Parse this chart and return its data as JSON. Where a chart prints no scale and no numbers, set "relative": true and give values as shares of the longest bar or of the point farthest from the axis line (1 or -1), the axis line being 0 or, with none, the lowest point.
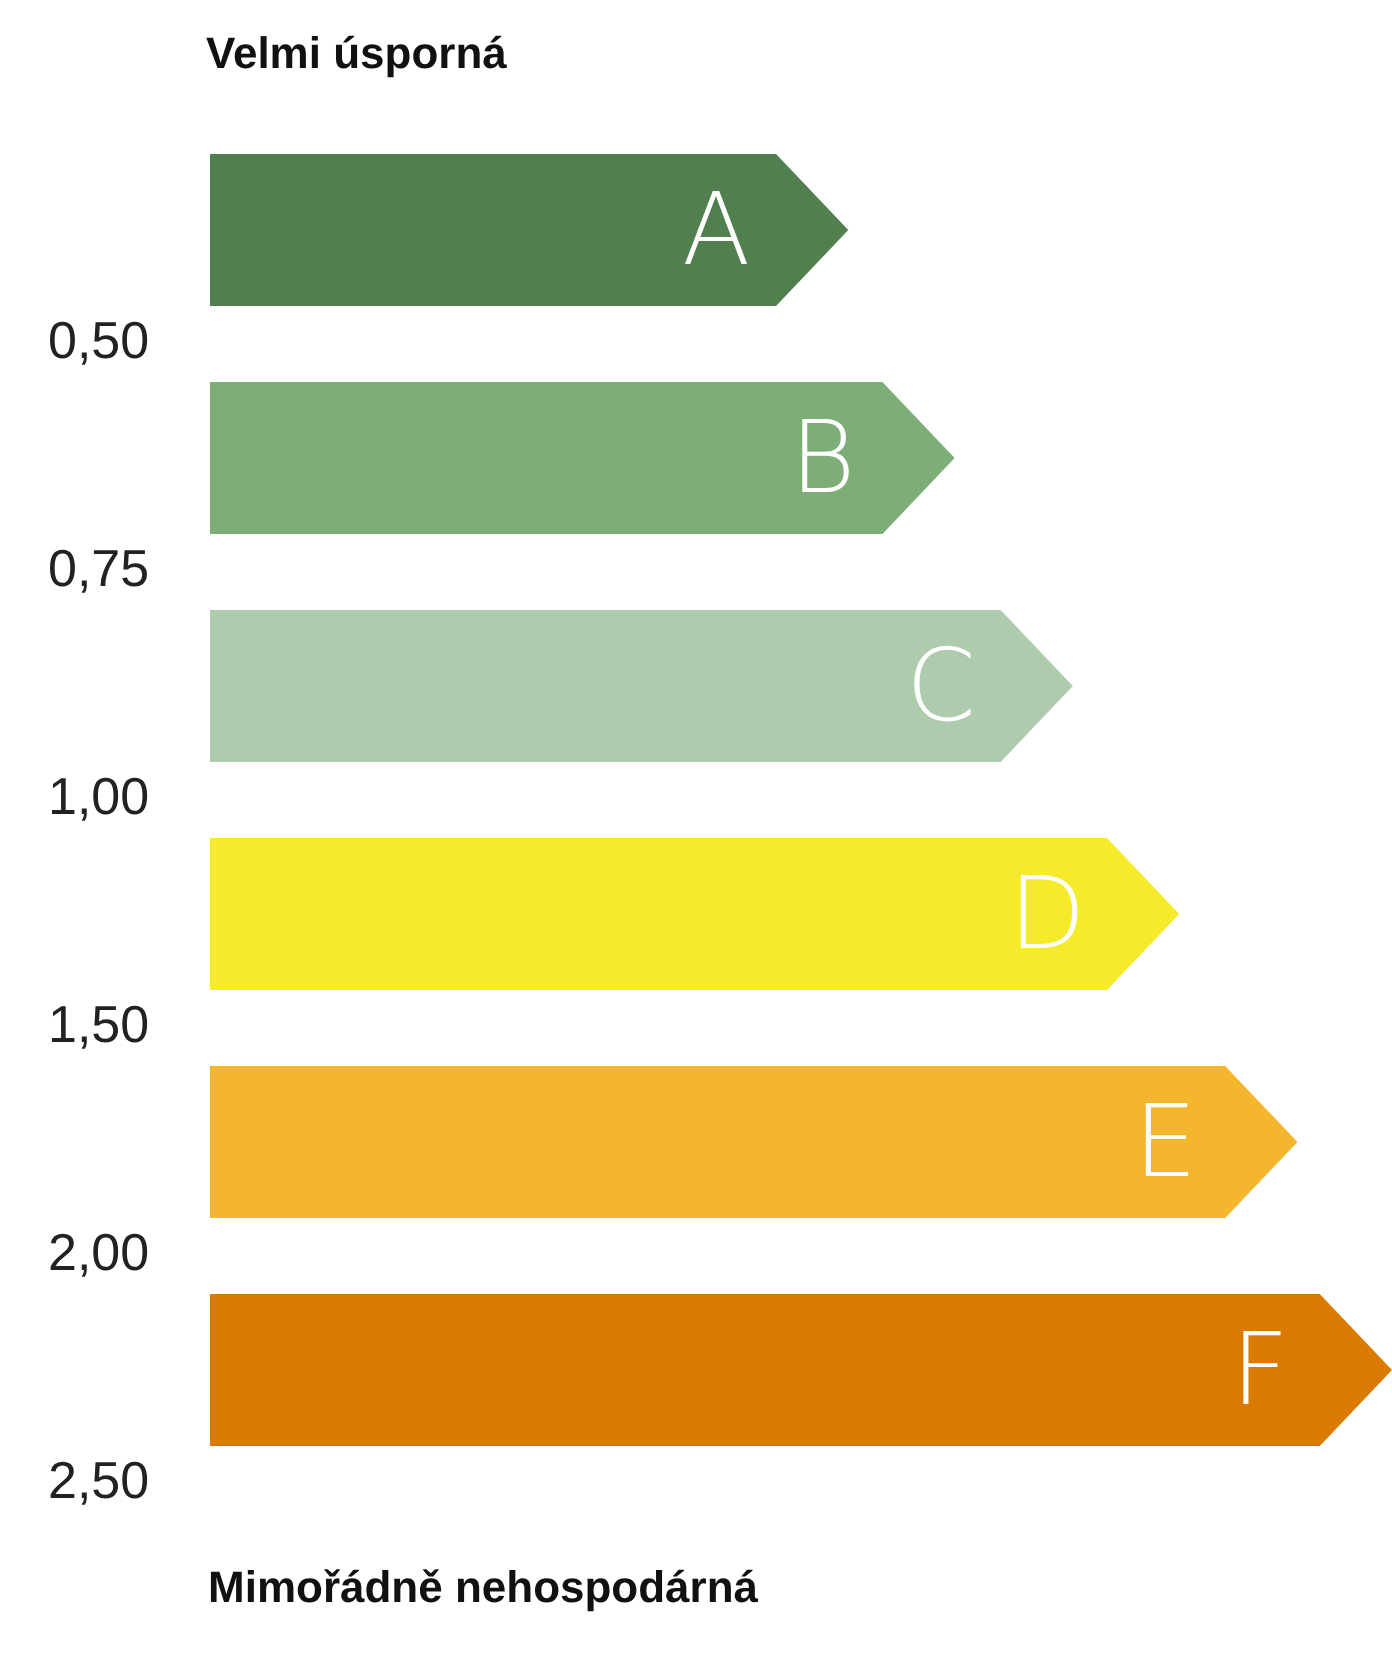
{
  "chart_data": {
    "type": "bar",
    "orientation": "horizontal",
    "relative": true,
    "title": "Velmi úsporná",
    "xlabel": "Mimořádně nehospodárná",
    "categories": [
      "A",
      "B",
      "C",
      "D",
      "E",
      "F"
    ],
    "values": [
      0.54,
      0.63,
      0.73,
      0.82,
      0.92,
      1
    ],
    "colors": [
      "#527f4f",
      "#7eae78",
      "#aecbad",
      "#f6eb2a",
      "#f4b62c",
      "#db7a00"
    ],
    "annotations": [
      "0,50",
      "0,75",
      "1,00",
      "1,50",
      "2,00",
      "2,50"
    ]
  }
}
